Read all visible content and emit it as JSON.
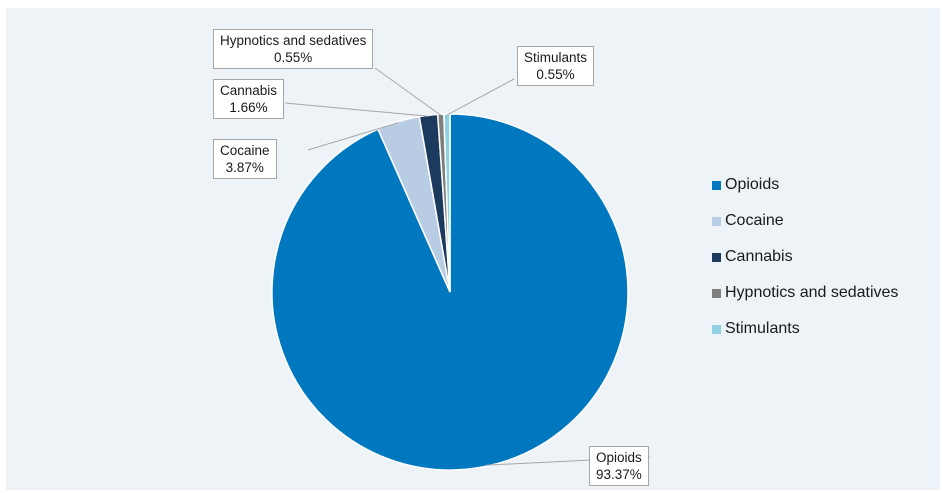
{
  "chart_data": {
    "type": "pie",
    "categories": [
      "Opioids",
      "Cocaine",
      "Cannabis",
      "Hypnotics and sedatives",
      "Stimulants"
    ],
    "values": [
      93.37,
      3.87,
      1.66,
      0.55,
      0.55
    ],
    "value_labels": [
      "93.37%",
      "3.87%",
      "1.66%",
      "0.55%",
      "0.55%"
    ],
    "colors": [
      "#0078c0",
      "#b8cde4",
      "#1b3a5e",
      "#7f7f7f",
      "#8fd1e0"
    ],
    "legend_position": "right",
    "data_label_style": "callout"
  }
}
